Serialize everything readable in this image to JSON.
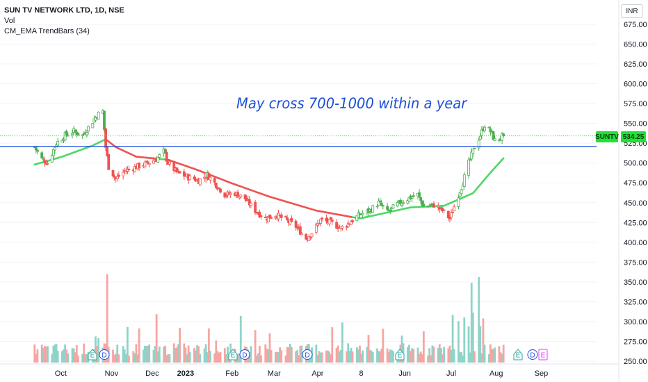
{
  "header": {
    "symbol_title": "SUN TV NETWORK LTD, 1D, NSE",
    "indicator_vol": "Vol",
    "indicator_ema": "CM_EMA TrendBars (34)"
  },
  "currency": "INR",
  "annotation": "May cross 700-1000 within a year",
  "price_labels": {
    "symbol": "SUNTV",
    "last_price": "534.25"
  },
  "colors": {
    "up_candle": "#26a69a",
    "up_candle_trend": "#4caf50",
    "down_candle": "#ef5350",
    "ema_up": "#4cd964",
    "ema_down": "#ef5350",
    "hline": "#1e4fd8",
    "vol_up": "#8fd3c9",
    "vol_down": "#f7a5a3",
    "last_price": "#22e035"
  },
  "price_axis": {
    "ticks": [
      "675.00",
      "650.00",
      "625.00",
      "600.00",
      "575.00",
      "550.00",
      "525.00",
      "500.00",
      "475.00",
      "450.00",
      "425.00",
      "400.00",
      "375.00",
      "350.00",
      "325.00",
      "300.00",
      "275.00",
      "250.00"
    ]
  },
  "time_axis": {
    "labels": [
      "Oct",
      "Nov",
      "Dec",
      "2023",
      "Feb",
      "Mar",
      "Apr",
      "8",
      "Jun",
      "Jul",
      "Aug",
      "Sep"
    ]
  },
  "events": [
    "E",
    "D",
    "E",
    "D",
    "E",
    "D",
    "E",
    "D",
    "E"
  ],
  "chart_data": {
    "type": "candlestick",
    "title": "SUN TV NETWORK LTD, 1D, NSE",
    "price_range": [
      400,
      675
    ],
    "horizontal_line": 521,
    "last_price": 534.25,
    "close_anchors": [
      {
        "d": "2022-09-21",
        "c": 520
      },
      {
        "d": "2022-09-26",
        "c": 505
      },
      {
        "d": "2022-09-30",
        "c": 500
      },
      {
        "d": "2022-10-06",
        "c": 525
      },
      {
        "d": "2022-10-12",
        "c": 535
      },
      {
        "d": "2022-10-18",
        "c": 540
      },
      {
        "d": "2022-10-24",
        "c": 535
      },
      {
        "d": "2022-10-28",
        "c": 545
      },
      {
        "d": "2022-11-02",
        "c": 558
      },
      {
        "d": "2022-11-04",
        "c": 562
      },
      {
        "d": "2022-11-07",
        "c": 565
      },
      {
        "d": "2022-11-09",
        "c": 520
      },
      {
        "d": "2022-11-11",
        "c": 495
      },
      {
        "d": "2022-11-16",
        "c": 480
      },
      {
        "d": "2022-11-22",
        "c": 490
      },
      {
        "d": "2022-11-30",
        "c": 495
      },
      {
        "d": "2022-12-08",
        "c": 500
      },
      {
        "d": "2022-12-14",
        "c": 505
      },
      {
        "d": "2022-12-19",
        "c": 515
      },
      {
        "d": "2022-12-22",
        "c": 500
      },
      {
        "d": "2022-12-28",
        "c": 488
      },
      {
        "d": "2023-01-05",
        "c": 482
      },
      {
        "d": "2023-01-12",
        "c": 478
      },
      {
        "d": "2023-01-18",
        "c": 485
      },
      {
        "d": "2023-01-23",
        "c": 475
      },
      {
        "d": "2023-01-30",
        "c": 460
      },
      {
        "d": "2023-02-06",
        "c": 462
      },
      {
        "d": "2023-02-13",
        "c": 455
      },
      {
        "d": "2023-02-20",
        "c": 440
      },
      {
        "d": "2023-02-27",
        "c": 430
      },
      {
        "d": "2023-03-06",
        "c": 435
      },
      {
        "d": "2023-03-13",
        "c": 428
      },
      {
        "d": "2023-03-20",
        "c": 420
      },
      {
        "d": "2023-03-27",
        "c": 405
      },
      {
        "d": "2023-03-31",
        "c": 412
      },
      {
        "d": "2023-04-06",
        "c": 428
      },
      {
        "d": "2023-04-13",
        "c": 425
      },
      {
        "d": "2023-04-20",
        "c": 418
      },
      {
        "d": "2023-04-26",
        "c": 425
      },
      {
        "d": "2023-05-03",
        "c": 435
      },
      {
        "d": "2023-05-10",
        "c": 440
      },
      {
        "d": "2023-05-16",
        "c": 450
      },
      {
        "d": "2023-05-22",
        "c": 438
      },
      {
        "d": "2023-05-29",
        "c": 448
      },
      {
        "d": "2023-06-05",
        "c": 455
      },
      {
        "d": "2023-06-12",
        "c": 460
      },
      {
        "d": "2023-06-16",
        "c": 445
      },
      {
        "d": "2023-06-23",
        "c": 447
      },
      {
        "d": "2023-06-29",
        "c": 440
      },
      {
        "d": "2023-07-04",
        "c": 430
      },
      {
        "d": "2023-07-07",
        "c": 445
      },
      {
        "d": "2023-07-12",
        "c": 470
      },
      {
        "d": "2023-07-17",
        "c": 500
      },
      {
        "d": "2023-07-21",
        "c": 520
      },
      {
        "d": "2023-07-25",
        "c": 535
      },
      {
        "d": "2023-07-28",
        "c": 548
      },
      {
        "d": "2023-08-01",
        "c": 540
      },
      {
        "d": "2023-08-04",
        "c": 528
      },
      {
        "d": "2023-08-08",
        "c": 532
      },
      {
        "d": "2023-08-10",
        "c": 534.25
      }
    ],
    "ema_anchors": [
      {
        "d": "2022-09-21",
        "v": 498
      },
      {
        "d": "2022-10-10",
        "v": 508
      },
      {
        "d": "2022-10-31",
        "v": 522
      },
      {
        "d": "2022-11-09",
        "v": 530
      },
      {
        "d": "2022-11-16",
        "v": 520
      },
      {
        "d": "2022-11-30",
        "v": 508
      },
      {
        "d": "2022-12-22",
        "v": 504
      },
      {
        "d": "2023-01-10",
        "v": 492
      },
      {
        "d": "2023-02-03",
        "v": 475
      },
      {
        "d": "2023-03-01",
        "v": 458
      },
      {
        "d": "2023-04-03",
        "v": 440
      },
      {
        "d": "2023-05-03",
        "v": 430
      },
      {
        "d": "2023-06-07",
        "v": 444
      },
      {
        "d": "2023-06-30",
        "v": 446
      },
      {
        "d": "2023-07-20",
        "v": 462
      },
      {
        "d": "2023-08-02",
        "v": 490
      },
      {
        "d": "2023-08-10",
        "v": 506
      }
    ]
  }
}
